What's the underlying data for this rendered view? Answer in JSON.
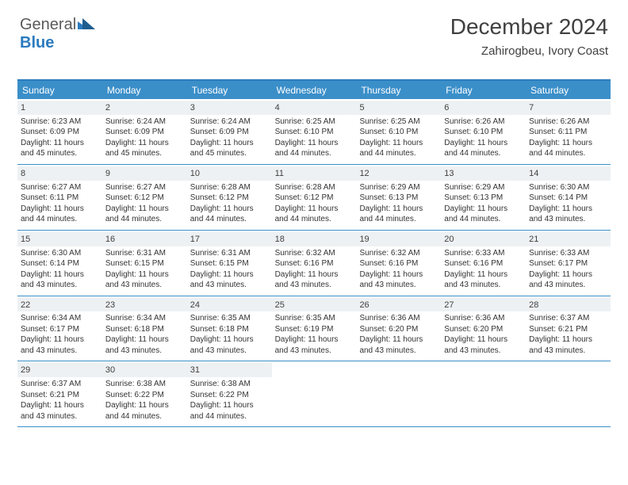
{
  "logo": {
    "text1": "General",
    "text2": "Blue",
    "icon_color": "#2b7bbf"
  },
  "header": {
    "month_title": "December 2024",
    "location": "Zahirogbeu, Ivory Coast"
  },
  "colors": {
    "header_bg": "#3b8fc9",
    "header_border": "#2b7bbf",
    "daynum_bg": "#eef1f3",
    "text": "#404040"
  },
  "day_headers": [
    "Sunday",
    "Monday",
    "Tuesday",
    "Wednesday",
    "Thursday",
    "Friday",
    "Saturday"
  ],
  "weeks": [
    [
      {
        "n": "1",
        "sr": "6:23 AM",
        "ss": "6:09 PM",
        "d": "11 hours and 45 minutes."
      },
      {
        "n": "2",
        "sr": "6:24 AM",
        "ss": "6:09 PM",
        "d": "11 hours and 45 minutes."
      },
      {
        "n": "3",
        "sr": "6:24 AM",
        "ss": "6:09 PM",
        "d": "11 hours and 45 minutes."
      },
      {
        "n": "4",
        "sr": "6:25 AM",
        "ss": "6:10 PM",
        "d": "11 hours and 44 minutes."
      },
      {
        "n": "5",
        "sr": "6:25 AM",
        "ss": "6:10 PM",
        "d": "11 hours and 44 minutes."
      },
      {
        "n": "6",
        "sr": "6:26 AM",
        "ss": "6:10 PM",
        "d": "11 hours and 44 minutes."
      },
      {
        "n": "7",
        "sr": "6:26 AM",
        "ss": "6:11 PM",
        "d": "11 hours and 44 minutes."
      }
    ],
    [
      {
        "n": "8",
        "sr": "6:27 AM",
        "ss": "6:11 PM",
        "d": "11 hours and 44 minutes."
      },
      {
        "n": "9",
        "sr": "6:27 AM",
        "ss": "6:12 PM",
        "d": "11 hours and 44 minutes."
      },
      {
        "n": "10",
        "sr": "6:28 AM",
        "ss": "6:12 PM",
        "d": "11 hours and 44 minutes."
      },
      {
        "n": "11",
        "sr": "6:28 AM",
        "ss": "6:12 PM",
        "d": "11 hours and 44 minutes."
      },
      {
        "n": "12",
        "sr": "6:29 AM",
        "ss": "6:13 PM",
        "d": "11 hours and 44 minutes."
      },
      {
        "n": "13",
        "sr": "6:29 AM",
        "ss": "6:13 PM",
        "d": "11 hours and 44 minutes."
      },
      {
        "n": "14",
        "sr": "6:30 AM",
        "ss": "6:14 PM",
        "d": "11 hours and 43 minutes."
      }
    ],
    [
      {
        "n": "15",
        "sr": "6:30 AM",
        "ss": "6:14 PM",
        "d": "11 hours and 43 minutes."
      },
      {
        "n": "16",
        "sr": "6:31 AM",
        "ss": "6:15 PM",
        "d": "11 hours and 43 minutes."
      },
      {
        "n": "17",
        "sr": "6:31 AM",
        "ss": "6:15 PM",
        "d": "11 hours and 43 minutes."
      },
      {
        "n": "18",
        "sr": "6:32 AM",
        "ss": "6:16 PM",
        "d": "11 hours and 43 minutes."
      },
      {
        "n": "19",
        "sr": "6:32 AM",
        "ss": "6:16 PM",
        "d": "11 hours and 43 minutes."
      },
      {
        "n": "20",
        "sr": "6:33 AM",
        "ss": "6:16 PM",
        "d": "11 hours and 43 minutes."
      },
      {
        "n": "21",
        "sr": "6:33 AM",
        "ss": "6:17 PM",
        "d": "11 hours and 43 minutes."
      }
    ],
    [
      {
        "n": "22",
        "sr": "6:34 AM",
        "ss": "6:17 PM",
        "d": "11 hours and 43 minutes."
      },
      {
        "n": "23",
        "sr": "6:34 AM",
        "ss": "6:18 PM",
        "d": "11 hours and 43 minutes."
      },
      {
        "n": "24",
        "sr": "6:35 AM",
        "ss": "6:18 PM",
        "d": "11 hours and 43 minutes."
      },
      {
        "n": "25",
        "sr": "6:35 AM",
        "ss": "6:19 PM",
        "d": "11 hours and 43 minutes."
      },
      {
        "n": "26",
        "sr": "6:36 AM",
        "ss": "6:20 PM",
        "d": "11 hours and 43 minutes."
      },
      {
        "n": "27",
        "sr": "6:36 AM",
        "ss": "6:20 PM",
        "d": "11 hours and 43 minutes."
      },
      {
        "n": "28",
        "sr": "6:37 AM",
        "ss": "6:21 PM",
        "d": "11 hours and 43 minutes."
      }
    ],
    [
      {
        "n": "29",
        "sr": "6:37 AM",
        "ss": "6:21 PM",
        "d": "11 hours and 43 minutes."
      },
      {
        "n": "30",
        "sr": "6:38 AM",
        "ss": "6:22 PM",
        "d": "11 hours and 44 minutes."
      },
      {
        "n": "31",
        "sr": "6:38 AM",
        "ss": "6:22 PM",
        "d": "11 hours and 44 minutes."
      },
      null,
      null,
      null,
      null
    ]
  ],
  "labels": {
    "sunrise": "Sunrise: ",
    "sunset": "Sunset: ",
    "daylight": "Daylight: "
  }
}
